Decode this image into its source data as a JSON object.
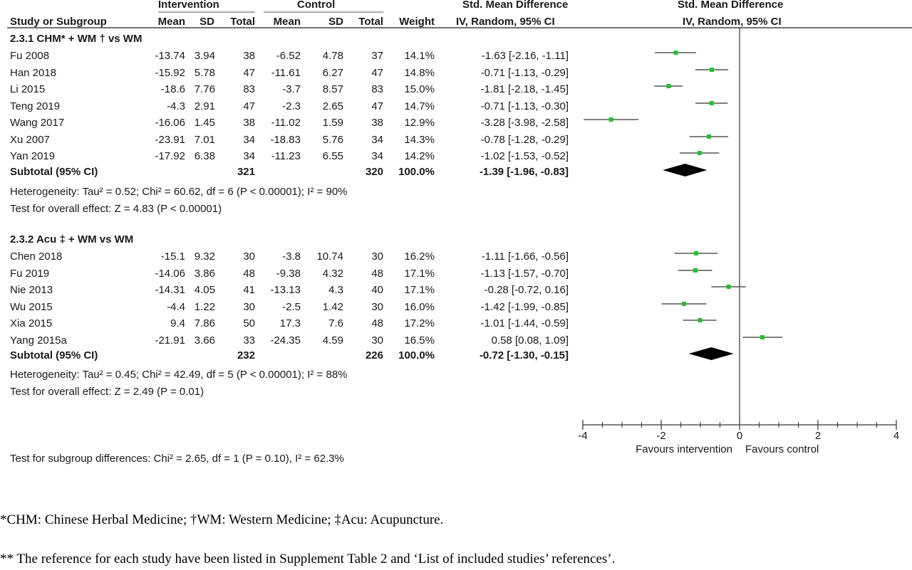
{
  "chart_data": {
    "type": "forest",
    "header": {
      "intervention": "Intervention",
      "control": "Control",
      "effect_col": "Std. Mean Difference",
      "effect_sub": "IV, Random, 95% CI",
      "plot_title": "Std. Mean Difference",
      "plot_sub": "IV, Random, 95% CI",
      "study": "Study or Subgroup",
      "mean": "Mean",
      "sd": "SD",
      "total": "Total",
      "weight": "Weight"
    },
    "subgroups": [
      {
        "title": "2.3.1 CHM* + WM † vs WM",
        "studies": [
          {
            "name": "Fu 2008",
            "i_mean": "-13.74",
            "i_sd": "3.94",
            "i_total": "38",
            "c_mean": "-6.52",
            "c_sd": "4.78",
            "c_total": "37",
            "weight": "14.1%",
            "ci_text": "-1.63 [-2.16, -1.11]",
            "est": -1.63,
            "lo": -2.16,
            "hi": -1.11
          },
          {
            "name": "Han 2018",
            "i_mean": "-15.92",
            "i_sd": "5.78",
            "i_total": "47",
            "c_mean": "-11.61",
            "c_sd": "6.27",
            "c_total": "47",
            "weight": "14.8%",
            "ci_text": "-0.71 [-1.13, -0.29]",
            "est": -0.71,
            "lo": -1.13,
            "hi": -0.29
          },
          {
            "name": "Li 2015",
            "i_mean": "-18.6",
            "i_sd": "7.76",
            "i_total": "83",
            "c_mean": "-3.7",
            "c_sd": "8.57",
            "c_total": "83",
            "weight": "15.0%",
            "ci_text": "-1.81 [-2.18, -1.45]",
            "est": -1.81,
            "lo": -2.18,
            "hi": -1.45
          },
          {
            "name": "Teng 2019",
            "i_mean": "-4.3",
            "i_sd": "2.91",
            "i_total": "47",
            "c_mean": "-2.3",
            "c_sd": "2.65",
            "c_total": "47",
            "weight": "14.7%",
            "ci_text": "-0.71 [-1.13, -0.30]",
            "est": -0.71,
            "lo": -1.13,
            "hi": -0.3
          },
          {
            "name": "Wang 2017",
            "i_mean": "-16.06",
            "i_sd": "1.45",
            "i_total": "38",
            "c_mean": "-11.02",
            "c_sd": "1.59",
            "c_total": "38",
            "weight": "12.9%",
            "ci_text": "-3.28 [-3.98, -2.58]",
            "est": -3.28,
            "lo": -3.98,
            "hi": -2.58
          },
          {
            "name": "Xu 2007",
            "i_mean": "-23.91",
            "i_sd": "7.01",
            "i_total": "34",
            "c_mean": "-18.83",
            "c_sd": "5.76",
            "c_total": "34",
            "weight": "14.3%",
            "ci_text": "-0.78 [-1.28, -0.29]",
            "est": -0.78,
            "lo": -1.28,
            "hi": -0.29
          },
          {
            "name": "Yan 2019",
            "i_mean": "-17.92",
            "i_sd": "6.38",
            "i_total": "34",
            "c_mean": "-11.23",
            "c_sd": "6.55",
            "c_total": "34",
            "weight": "14.2%",
            "ci_text": "-1.02 [-1.53, -0.52]",
            "est": -1.02,
            "lo": -1.53,
            "hi": -0.52
          }
        ],
        "subtotal": {
          "label": "Subtotal (95% CI)",
          "i_total": "321",
          "c_total": "320",
          "weight": "100.0%",
          "ci_text": "-1.39 [-1.96, -0.83]",
          "est": -1.39,
          "lo": -1.96,
          "hi": -0.83
        },
        "heterogeneity": "Heterogeneity: Tau² = 0.52; Chi² = 60.62, df = 6 (P < 0.00001); I² = 90%",
        "overall": "Test for overall effect: Z = 4.83 (P < 0.00001)"
      },
      {
        "title": "2.3.2 Acu ‡ + WM vs WM",
        "studies": [
          {
            "name": "Chen 2018",
            "i_mean": "-15.1",
            "i_sd": "9.32",
            "i_total": "30",
            "c_mean": "-3.8",
            "c_sd": "10.74",
            "c_total": "30",
            "weight": "16.2%",
            "ci_text": "-1.11 [-1.66, -0.56]",
            "est": -1.11,
            "lo": -1.66,
            "hi": -0.56
          },
          {
            "name": "Fu 2019",
            "i_mean": "-14.06",
            "i_sd": "3.86",
            "i_total": "48",
            "c_mean": "-9.38",
            "c_sd": "4.32",
            "c_total": "48",
            "weight": "17.1%",
            "ci_text": "-1.13 [-1.57, -0.70]",
            "est": -1.13,
            "lo": -1.57,
            "hi": -0.7
          },
          {
            "name": "Nie 2013",
            "i_mean": "-14.31",
            "i_sd": "4.05",
            "i_total": "41",
            "c_mean": "-13.13",
            "c_sd": "4.3",
            "c_total": "40",
            "weight": "17.1%",
            "ci_text": "-0.28 [-0.72, 0.16]",
            "est": -0.28,
            "lo": -0.72,
            "hi": 0.16
          },
          {
            "name": "Wu 2015",
            "i_mean": "-4.4",
            "i_sd": "1.22",
            "i_total": "30",
            "c_mean": "-2.5",
            "c_sd": "1.42",
            "c_total": "30",
            "weight": "16.0%",
            "ci_text": "-1.42 [-1.99, -0.85]",
            "est": -1.42,
            "lo": -1.99,
            "hi": -0.85
          },
          {
            "name": "Xia 2015",
            "i_mean": "9.4",
            "i_sd": "7.86",
            "i_total": "50",
            "c_mean": "17.3",
            "c_sd": "7.6",
            "c_total": "48",
            "weight": "17.2%",
            "ci_text": "-1.01 [-1.44, -0.59]",
            "est": -1.01,
            "lo": -1.44,
            "hi": -0.59
          },
          {
            "name": "Yang 2015a",
            "i_mean": "-21.91",
            "i_sd": "3.66",
            "i_total": "33",
            "c_mean": "-24.35",
            "c_sd": "4.59",
            "c_total": "30",
            "weight": "16.5%",
            "ci_text": "0.58 [0.08, 1.09]",
            "est": 0.58,
            "lo": 0.08,
            "hi": 1.09
          }
        ],
        "subtotal": {
          "label": "Subtotal (95% CI)",
          "i_total": "232",
          "c_total": "226",
          "weight": "100.0%",
          "ci_text": "-0.72 [-1.30, -0.15]",
          "est": -0.72,
          "lo": -1.3,
          "hi": -0.15
        },
        "heterogeneity": "Heterogeneity: Tau² = 0.45; Chi² = 42.49, df = 5 (P < 0.00001); I² = 88%",
        "overall": "Test for overall effect: Z = 2.49 (P = 0.01)"
      }
    ],
    "subgroup_test": "Test for subgroup differences: Chi² = 2.65, df = 1 (P = 0.10), I² = 62.3%",
    "x_axis": {
      "ticks": [
        -4,
        -2,
        0,
        2,
        4
      ],
      "xlim": [
        -4,
        4
      ]
    },
    "favours_left": "Favours intervention",
    "favours_right": "Favours control",
    "point_color": "#22c22a",
    "diamond_color": "#000000"
  },
  "footnotes": [
    "*CHM: Chinese Herbal Medicine; †WM: Western Medicine; ‡Acu: Acupuncture.",
    "** The reference for each study have been listed in Supplement Table 2 and ‘List of included studies’ references’."
  ]
}
